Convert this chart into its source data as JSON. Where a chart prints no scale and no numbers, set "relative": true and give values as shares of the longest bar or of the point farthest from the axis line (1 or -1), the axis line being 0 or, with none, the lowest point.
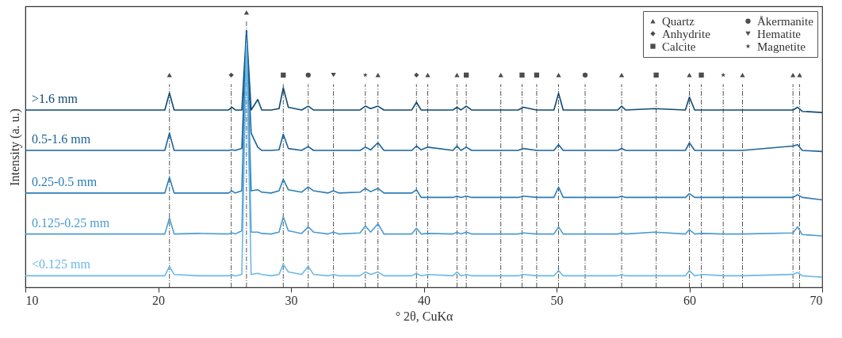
{
  "chart_data": {
    "type": "line",
    "relative": true,
    "xlabel": "° 2θ, CuKα",
    "ylabel": "Intensity (a. u.)",
    "xlim": [
      10,
      70
    ],
    "xticks": [
      10,
      20,
      30,
      40,
      50,
      60,
      70
    ],
    "tick_labels": "x",
    "grid": false,
    "legend": "top right",
    "marker": "none",
    "x": [
      10,
      12,
      14,
      16,
      18,
      20.5,
      20.85,
      21.2,
      23,
      25.3,
      25.55,
      25.8,
      26.3,
      26.65,
      27.0,
      27.5,
      27.8,
      28.5,
      29.1,
      29.42,
      29.8,
      30.8,
      31.3,
      31.7,
      32.8,
      33.2,
      33.6,
      35.2,
      35.6,
      36.0,
      36.55,
      37.0,
      39.1,
      39.45,
      39.8,
      40.3,
      42.2,
      42.5,
      42.8,
      43.2,
      43.6,
      45.8,
      47.1,
      47.5,
      48.5,
      49.8,
      50.15,
      50.5,
      52.2,
      54.6,
      54.9,
      55.2,
      57.4,
      59.7,
      60.0,
      60.4,
      61.0,
      62.6,
      64.0,
      67.8,
      68.15,
      68.5,
      70
    ],
    "series": [
      {
        "name": ">1.6 mm",
        "color": "#0e4a74",
        "values": [
          0.645,
          0.645,
          0.645,
          0.645,
          0.645,
          0.645,
          0.707,
          0.645,
          0.645,
          0.645,
          0.655,
          0.645,
          0.645,
          0.935,
          0.645,
          0.683,
          0.645,
          0.645,
          0.65,
          0.726,
          0.655,
          0.645,
          0.659,
          0.645,
          0.645,
          0.645,
          0.645,
          0.645,
          0.659,
          0.65,
          0.659,
          0.645,
          0.645,
          0.673,
          0.645,
          0.645,
          0.645,
          0.655,
          0.645,
          0.659,
          0.645,
          0.645,
          0.645,
          0.655,
          0.645,
          0.645,
          0.706,
          0.645,
          0.645,
          0.645,
          0.659,
          0.645,
          0.65,
          0.645,
          0.692,
          0.645,
          0.645,
          0.645,
          0.645,
          0.645,
          0.655,
          0.64,
          0.636
        ]
      },
      {
        "name": "0.5-1.6 mm",
        "color": "#1a639a",
        "values": [
          0.498,
          0.498,
          0.498,
          0.498,
          0.498,
          0.498,
          0.561,
          0.498,
          0.498,
          0.498,
          0.5,
          0.498,
          0.505,
          0.926,
          0.561,
          0.51,
          0.498,
          0.498,
          0.5,
          0.557,
          0.505,
          0.498,
          0.512,
          0.498,
          0.498,
          0.498,
          0.498,
          0.498,
          0.51,
          0.5,
          0.526,
          0.498,
          0.498,
          0.514,
          0.5,
          0.51,
          0.498,
          0.514,
          0.498,
          0.51,
          0.498,
          0.498,
          0.498,
          0.505,
          0.498,
          0.498,
          0.519,
          0.498,
          0.498,
          0.498,
          0.505,
          0.498,
          0.498,
          0.498,
          0.526,
          0.498,
          0.498,
          0.498,
          0.498,
          0.514,
          0.519,
          0.498,
          0.494
        ]
      },
      {
        "name": "0.25-0.5 mm",
        "color": "#2b7db6",
        "values": [
          0.343,
          0.343,
          0.343,
          0.343,
          0.343,
          0.343,
          0.4,
          0.343,
          0.343,
          0.343,
          0.351,
          0.343,
          0.351,
          0.907,
          0.351,
          0.355,
          0.346,
          0.343,
          0.351,
          0.393,
          0.355,
          0.346,
          0.365,
          0.351,
          0.343,
          0.351,
          0.343,
          0.346,
          0.36,
          0.348,
          0.36,
          0.343,
          0.343,
          0.355,
          0.327,
          0.327,
          0.327,
          0.332,
          0.327,
          0.332,
          0.327,
          0.327,
          0.327,
          0.332,
          0.327,
          0.327,
          0.365,
          0.327,
          0.327,
          0.327,
          0.332,
          0.327,
          0.327,
          0.327,
          0.341,
          0.327,
          0.327,
          0.327,
          0.327,
          0.327,
          0.337,
          0.327,
          0.318
        ]
      },
      {
        "name": "0.125-0.25 mm",
        "color": "#4b9cd2",
        "values": [
          0.194,
          0.194,
          0.194,
          0.194,
          0.194,
          0.194,
          0.252,
          0.194,
          0.196,
          0.194,
          0.198,
          0.194,
          0.206,
          0.898,
          0.201,
          0.201,
          0.196,
          0.194,
          0.201,
          0.256,
          0.206,
          0.196,
          0.22,
          0.201,
          0.194,
          0.201,
          0.194,
          0.198,
          0.223,
          0.201,
          0.231,
          0.194,
          0.194,
          0.215,
          0.194,
          0.196,
          0.194,
          0.201,
          0.194,
          0.201,
          0.194,
          0.194,
          0.194,
          0.198,
          0.194,
          0.194,
          0.22,
          0.194,
          0.194,
          0.194,
          0.198,
          0.194,
          0.201,
          0.194,
          0.21,
          0.194,
          0.196,
          0.194,
          0.194,
          0.198,
          0.22,
          0.192,
          0.187
        ]
      },
      {
        "name": "<0.125 mm",
        "color": "#6cb8e8",
        "values": [
          0.042,
          0.042,
          0.042,
          0.042,
          0.042,
          0.042,
          0.076,
          0.047,
          0.042,
          0.042,
          0.045,
          0.042,
          0.047,
          0.888,
          0.047,
          0.051,
          0.047,
          0.042,
          0.047,
          0.084,
          0.056,
          0.047,
          0.076,
          0.047,
          0.042,
          0.047,
          0.042,
          0.042,
          0.056,
          0.047,
          0.056,
          0.042,
          0.042,
          0.051,
          0.042,
          0.047,
          0.042,
          0.056,
          0.042,
          0.047,
          0.042,
          0.042,
          0.042,
          0.047,
          0.042,
          0.042,
          0.061,
          0.042,
          0.042,
          0.042,
          0.047,
          0.042,
          0.042,
          0.042,
          0.061,
          0.042,
          0.047,
          0.042,
          0.042,
          0.047,
          0.054,
          0.042,
          0.037
        ]
      },
      {
        "name": "Quartz",
        "type": "scatter",
        "marker": "triangle",
        "color": "#000000",
        "x": [
          20.85,
          26.65,
          36.55,
          40.3,
          42.5,
          45.8,
          50.15,
          54.9,
          60.0,
          64.0,
          67.8,
          68.3
        ],
        "values": [
          0.772,
          1.0,
          0.772,
          0.772,
          0.772,
          0.772,
          0.772,
          0.772,
          0.772,
          0.772,
          0.772,
          0.772
        ]
      },
      {
        "name": "Anhydrite",
        "type": "scatter",
        "marker": "diamond",
        "color": "#000000",
        "x": [
          25.5,
          39.45
        ],
        "values": [
          0.772,
          0.772
        ]
      },
      {
        "name": "Calcite",
        "type": "scatter",
        "marker": "square",
        "color": "#000000",
        "x": [
          29.42,
          43.2,
          47.4,
          48.5,
          57.5,
          60.9
        ],
        "values": [
          0.772,
          0.772,
          0.772,
          0.772,
          0.772,
          0.772
        ]
      },
      {
        "name": "Åkermanite",
        "type": "scatter",
        "marker": "circle",
        "color": "#000000",
        "x": [
          31.3,
          52.15
        ],
        "values": [
          0.772,
          0.772
        ]
      },
      {
        "name": "Hematite",
        "type": "scatter",
        "marker": "triangle-down",
        "color": "#000000",
        "x": [
          33.2
        ],
        "values": [
          0.772
        ]
      },
      {
        "name": "Magnetite",
        "type": "scatter",
        "marker": "star",
        "color": "#000000",
        "x": [
          35.6,
          62.55
        ],
        "values": [
          0.772,
          0.772
        ]
      }
    ],
    "ref_lines": [
      {
        "axis": "x",
        "value": 20.85,
        "line_style": "dashed",
        "color": "#555555"
      },
      {
        "axis": "x",
        "value": 25.5,
        "line_style": "dashed",
        "color": "#555555"
      },
      {
        "axis": "x",
        "value": 26.65,
        "line_style": "dashed",
        "color": "#555555"
      },
      {
        "axis": "x",
        "value": 29.42,
        "line_style": "dashed",
        "color": "#555555"
      },
      {
        "axis": "x",
        "value": 31.3,
        "line_style": "dashed",
        "color": "#555555"
      },
      {
        "axis": "x",
        "value": 33.2,
        "line_style": "dashed",
        "color": "#555555"
      },
      {
        "axis": "x",
        "value": 35.6,
        "line_style": "dashed",
        "color": "#555555"
      },
      {
        "axis": "x",
        "value": 36.55,
        "line_style": "dashed",
        "color": "#555555"
      },
      {
        "axis": "x",
        "value": 39.45,
        "line_style": "dashed",
        "color": "#555555"
      },
      {
        "axis": "x",
        "value": 40.3,
        "line_style": "dashed",
        "color": "#555555"
      },
      {
        "axis": "x",
        "value": 42.5,
        "line_style": "dashed",
        "color": "#555555"
      },
      {
        "axis": "x",
        "value": 43.2,
        "line_style": "dashed",
        "color": "#555555"
      },
      {
        "axis": "x",
        "value": 45.8,
        "line_style": "dashed",
        "color": "#555555"
      },
      {
        "axis": "x",
        "value": 47.4,
        "line_style": "dashed",
        "color": "#555555"
      },
      {
        "axis": "x",
        "value": 48.5,
        "line_style": "dashed",
        "color": "#555555"
      },
      {
        "axis": "x",
        "value": 50.15,
        "line_style": "dashed",
        "color": "#555555"
      },
      {
        "axis": "x",
        "value": 52.15,
        "line_style": "dashed",
        "color": "#555555"
      },
      {
        "axis": "x",
        "value": 54.9,
        "line_style": "dashed",
        "color": "#555555"
      },
      {
        "axis": "x",
        "value": 57.5,
        "line_style": "dashed",
        "color": "#555555"
      },
      {
        "axis": "x",
        "value": 60.0,
        "line_style": "dashed",
        "color": "#555555"
      },
      {
        "axis": "x",
        "value": 60.9,
        "line_style": "dashed",
        "color": "#555555"
      },
      {
        "axis": "x",
        "value": 62.55,
        "line_style": "dashed",
        "color": "#555555"
      },
      {
        "axis": "x",
        "value": 64.0,
        "line_style": "dashed",
        "color": "#555555"
      },
      {
        "axis": "x",
        "value": 67.8,
        "line_style": "dashed",
        "color": "#555555"
      },
      {
        "axis": "x",
        "value": 68.3,
        "line_style": "dashed",
        "color": "#555555"
      }
    ]
  }
}
